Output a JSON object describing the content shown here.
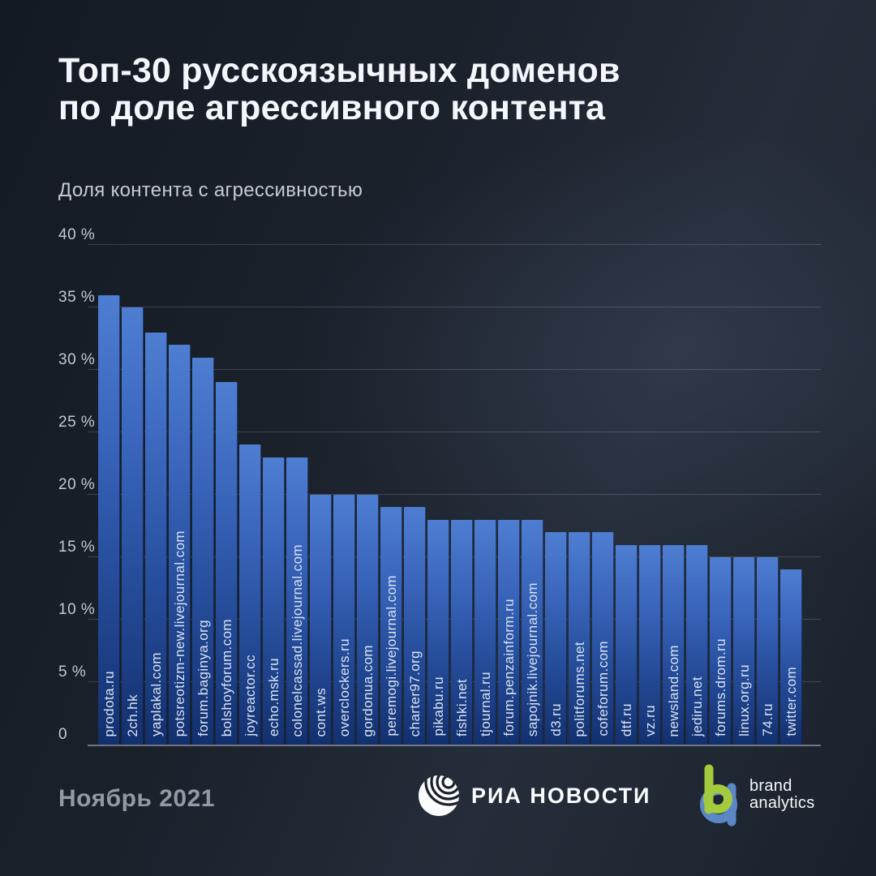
{
  "title": {
    "line1": "Топ-30 русскоязычных доменов",
    "line2": "по доле агрессивного контента"
  },
  "subtitle": "Доля контента с агрессивностью",
  "chart_data": {
    "type": "bar",
    "title": "Топ-30 русскоязычных доменов по доле агрессивного контента",
    "subtitle": "Доля контента с агрессивностью",
    "unit": "%",
    "ylim": [
      0,
      40
    ],
    "grid": true,
    "y_ticks": [
      {
        "value": 40,
        "label": "40 %"
      },
      {
        "value": 35,
        "label": "35 %"
      },
      {
        "value": 30,
        "label": "30 %"
      },
      {
        "value": 25,
        "label": "25 %"
      },
      {
        "value": 20,
        "label": "20 %"
      },
      {
        "value": 15,
        "label": "15 %"
      },
      {
        "value": 10,
        "label": "10 %"
      },
      {
        "value": 5,
        "label": "5 %"
      },
      {
        "value": 0,
        "label": "0"
      }
    ],
    "categories": [
      "prodota.ru",
      "2ch.hk",
      "yaplakal.com",
      "potsreotizm-new.livejournal.com",
      "forum.baginya.org",
      "bolshoyforum.com",
      "joyreactor.cc",
      "echo.msk.ru",
      "colonelcassad.livejournal.com",
      "cont.ws",
      "overclockers.ru",
      "gordonua.com",
      "peremogi.livejournal.com",
      "charter97.org",
      "pikabu.ru",
      "fishki.net",
      "tjournal.ru",
      "forum.penzainform.ru",
      "sapojnik.livejournal.com",
      "d3.ru",
      "politforums.net",
      "cofeforum.com",
      "dtf.ru",
      "vz.ru",
      "newsland.com",
      "jediru.net",
      "forums.drom.ru",
      "linux.org.ru",
      "74.ru",
      "twitter.com"
    ],
    "values": [
      36,
      35,
      33,
      32,
      31,
      29,
      24,
      23,
      23,
      20,
      20,
      20,
      19,
      19,
      18,
      18,
      18,
      18,
      18,
      17,
      17,
      17,
      16,
      16,
      16,
      16,
      15,
      15,
      15,
      14
    ]
  },
  "footer": {
    "period": "Ноябрь 2021",
    "ria_text": "РИА НОВОСТИ",
    "brand_line1": "brand",
    "brand_line2": "analytics"
  },
  "colors": {
    "background": "#1b222d",
    "bar_top": "#4e7ed2",
    "bar_bottom": "#12306f",
    "grid": "rgba(255,255,255,0.16)",
    "brand_green": "#a3cb3d",
    "brand_blue": "#5b87c7"
  }
}
